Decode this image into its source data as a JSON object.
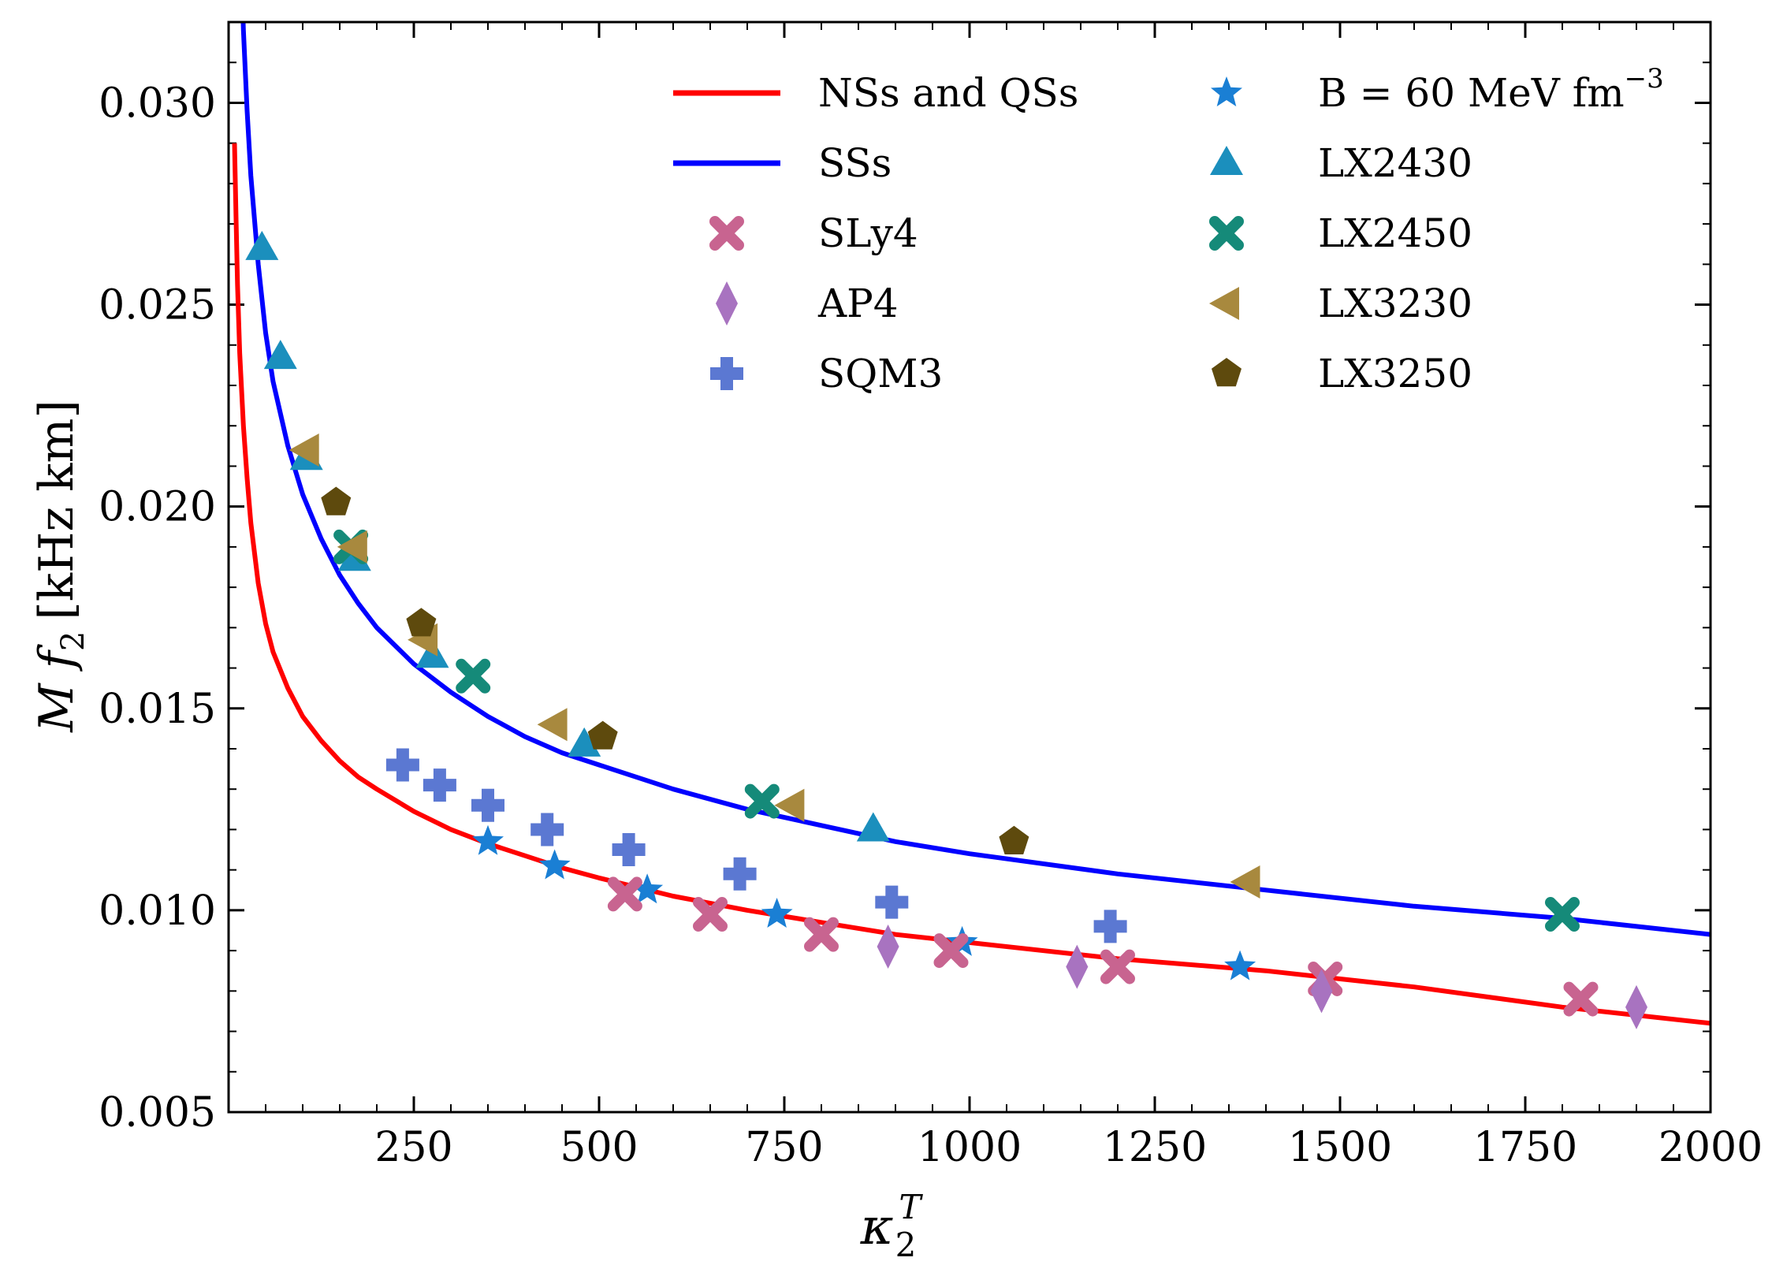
{
  "chart_data": {
    "type": "scatter",
    "xlabel_main": "κ",
    "xlabel_sub": "2",
    "xlabel_sup": "T",
    "ylabel_main": "M f",
    "ylabel_sub": "2",
    "ylabel_unit": "[kHz km]",
    "xlim": [
      0,
      2000
    ],
    "ylim": [
      0.005,
      0.032
    ],
    "xticks": [
      250,
      500,
      750,
      1000,
      1250,
      1500,
      1750,
      2000
    ],
    "xtick_labels": [
      "250",
      "500",
      "750",
      "1000",
      "1250",
      "1500",
      "1750",
      "2000"
    ],
    "yticks": [
      0.005,
      0.01,
      0.015,
      0.02,
      0.025,
      0.03
    ],
    "ytick_labels": [
      "0.005",
      "0.010",
      "0.015",
      "0.020",
      "0.025",
      "0.030"
    ],
    "grid": false,
    "legend_position": "top-right",
    "lines": [
      {
        "name": "NSs and QSs",
        "color": "#ff0000",
        "x": [
          8,
          10,
          12,
          15,
          20,
          25,
          30,
          40,
          50,
          60,
          80,
          100,
          125,
          150,
          175,
          200,
          250,
          300,
          350,
          400,
          450,
          500,
          600,
          700,
          800,
          900,
          1000,
          1200,
          1400,
          1600,
          1800,
          2000
        ],
        "y": [
          0.029,
          0.0272,
          0.0255,
          0.0238,
          0.022,
          0.0207,
          0.0196,
          0.0181,
          0.0171,
          0.0164,
          0.0155,
          0.0148,
          0.0142,
          0.0137,
          0.0133,
          0.013,
          0.01245,
          0.012,
          0.01165,
          0.01135,
          0.01105,
          0.0108,
          0.01035,
          0.01,
          0.0097,
          0.0094,
          0.0092,
          0.0088,
          0.0085,
          0.0081,
          0.0076,
          0.0072
        ]
      },
      {
        "name": "SSs",
        "color": "#0000ff",
        "x": [
          18,
          20,
          25,
          30,
          40,
          50,
          60,
          80,
          100,
          125,
          150,
          175,
          200,
          250,
          300,
          350,
          400,
          450,
          500,
          600,
          700,
          800,
          900,
          1000,
          1200,
          1400,
          1600,
          1800,
          2000
        ],
        "y": [
          0.033,
          0.0318,
          0.0298,
          0.0282,
          0.026,
          0.0243,
          0.0231,
          0.0215,
          0.0203,
          0.0192,
          0.0183,
          0.0176,
          0.017,
          0.0161,
          0.0154,
          0.0148,
          0.0143,
          0.0139,
          0.0136,
          0.013,
          0.0125,
          0.0121,
          0.0117,
          0.0114,
          0.0109,
          0.0105,
          0.0101,
          0.0098,
          0.0094
        ]
      }
    ],
    "series": [
      {
        "name": "B = 60 MeV fm",
        "name_sup": "−3",
        "marker": "star",
        "color": "#1a7fd4",
        "x": [
          350,
          440,
          565,
          740,
          990,
          1365
        ],
        "y": [
          0.0117,
          0.0111,
          0.0105,
          0.0099,
          0.0092,
          0.0086
        ]
      },
      {
        "name": "LX2430",
        "marker": "triangle-up",
        "color": "#1b8fbd",
        "x": [
          45,
          70,
          105,
          170,
          275,
          480,
          870
        ],
        "y": [
          0.0264,
          0.0237,
          0.0212,
          0.0187,
          0.0163,
          0.0141,
          0.012
        ]
      },
      {
        "name": "LX2450",
        "marker": "x",
        "color": "#158a79",
        "x": [
          165,
          330,
          720,
          1800
        ],
        "y": [
          0.019,
          0.0158,
          0.0127,
          0.0099
        ]
      },
      {
        "name": "LX3230",
        "marker": "triangle-left",
        "color": "#a8893e",
        "x": [
          105,
          170,
          265,
          440,
          760,
          1375
        ],
        "y": [
          0.0214,
          0.019,
          0.0167,
          0.0146,
          0.0126,
          0.0107
        ]
      },
      {
        "name": "LX3250",
        "marker": "pentagon",
        "color": "#5e4a0d",
        "x": [
          145,
          260,
          505,
          1060
        ],
        "y": [
          0.0201,
          0.0171,
          0.0143,
          0.0117
        ]
      },
      {
        "name": "SLy4",
        "marker": "x",
        "color": "#c86490",
        "x": [
          535,
          650,
          800,
          975,
          1200,
          1480,
          1825
        ],
        "y": [
          0.0104,
          0.0099,
          0.0094,
          0.009,
          0.0086,
          0.0083,
          0.0078
        ]
      },
      {
        "name": "AP4",
        "marker": "diamond",
        "color": "#a873c0",
        "x": [
          890,
          1145,
          1475,
          1900
        ],
        "y": [
          0.0091,
          0.0086,
          0.008,
          0.0076
        ]
      },
      {
        "name": "SQM3",
        "marker": "plus",
        "color": "#5b78d2",
        "x": [
          235,
          285,
          350,
          430,
          540,
          690,
          895,
          1190
        ],
        "y": [
          0.0136,
          0.0131,
          0.0126,
          0.012,
          0.0115,
          0.0109,
          0.0102,
          0.0096
        ]
      }
    ],
    "legend": {
      "col1": [
        {
          "kind": "line",
          "label": "NSs and QSs",
          "color": "#ff0000"
        },
        {
          "kind": "line",
          "label": "SSs",
          "color": "#0000ff"
        },
        {
          "kind": "x",
          "label": "SLy4",
          "color": "#c86490"
        },
        {
          "kind": "diamond",
          "label": "AP4",
          "color": "#a873c0"
        },
        {
          "kind": "plus",
          "label": "SQM3",
          "color": "#5b78d2"
        }
      ],
      "col2": [
        {
          "kind": "star",
          "label": "B = 60 MeV fm",
          "label_sup": "−3",
          "color": "#1a7fd4"
        },
        {
          "kind": "triangle-up",
          "label": "LX2430",
          "color": "#1b8fbd"
        },
        {
          "kind": "x",
          "label": "LX2450",
          "color": "#158a79"
        },
        {
          "kind": "triangle-left",
          "label": "LX3230",
          "color": "#a8893e"
        },
        {
          "kind": "pentagon",
          "label": "LX3250",
          "color": "#5e4a0d"
        }
      ]
    }
  }
}
